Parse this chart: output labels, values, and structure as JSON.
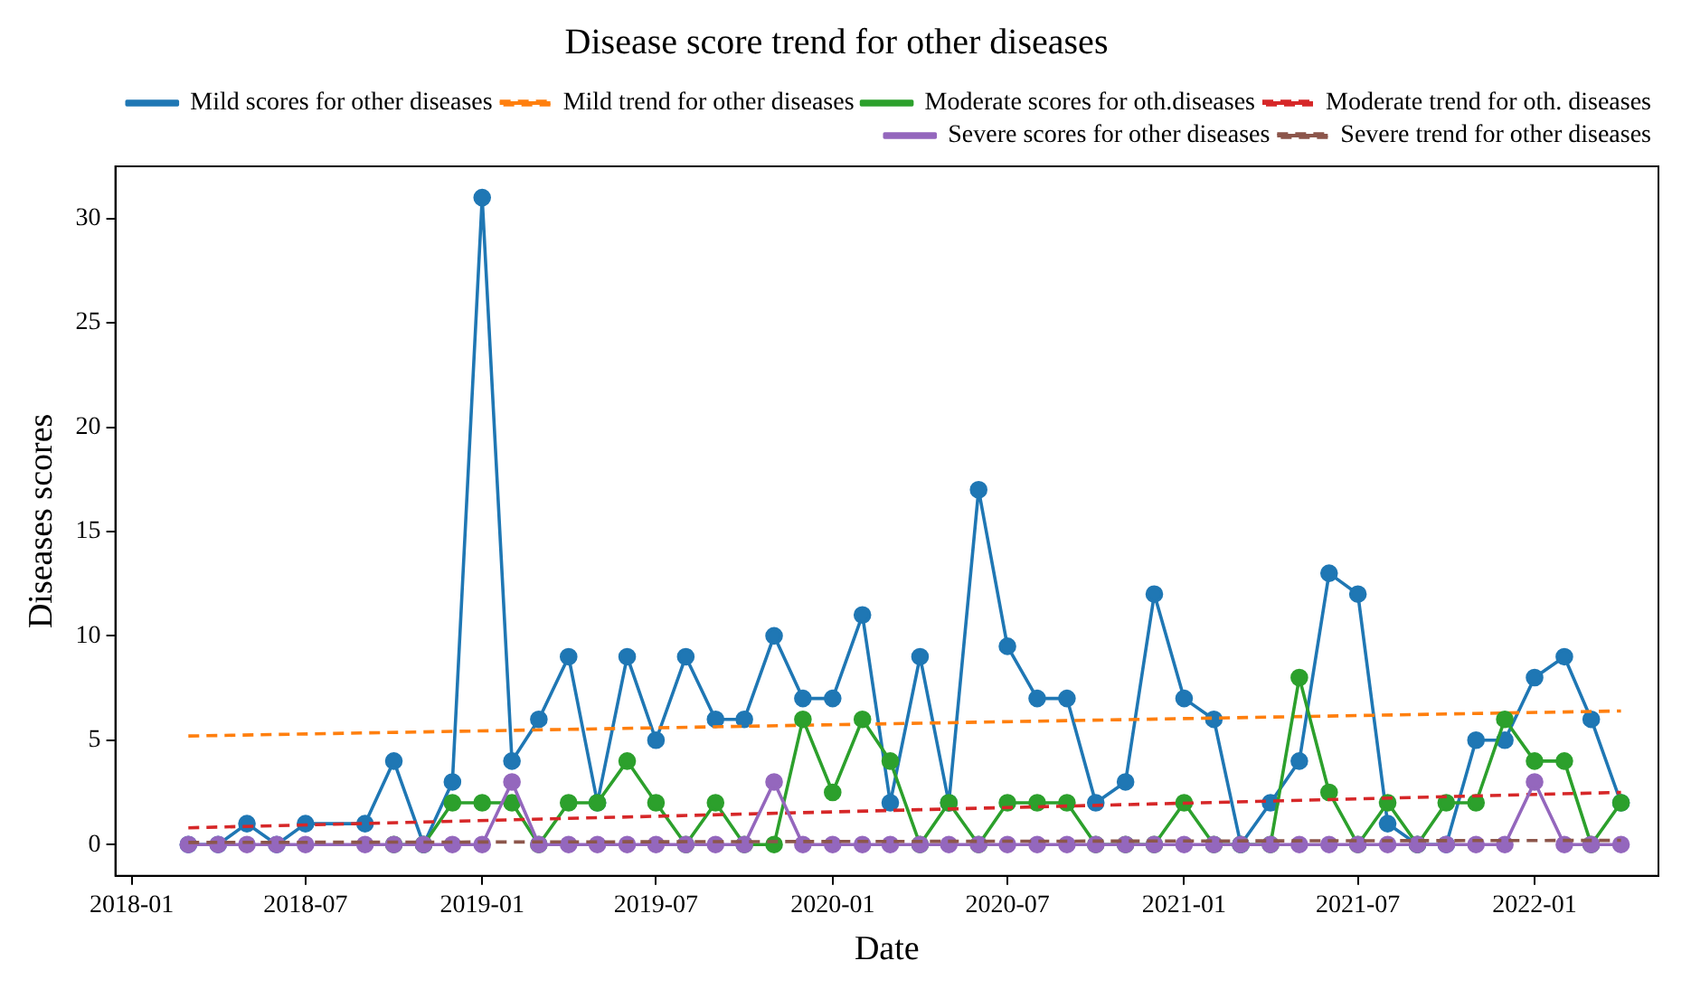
{
  "chart_data": {
    "type": "line",
    "title": "Disease score trend for other diseases",
    "xlabel": "Date",
    "ylabel": "Diseases scores",
    "x": [
      "2018-03",
      "2018-04",
      "2018-05",
      "2018-06",
      "2018-07",
      "2018-09",
      "2018-10",
      "2018-11",
      "2018-12",
      "2019-01",
      "2019-02",
      "2019-03",
      "2019-04",
      "2019-05",
      "2019-06",
      "2019-07",
      "2019-08",
      "2019-09",
      "2019-10",
      "2019-11",
      "2019-12",
      "2020-01",
      "2020-02",
      "2020-03",
      "2020-04",
      "2020-05",
      "2020-06",
      "2020-07",
      "2020-08",
      "2020-09",
      "2020-10",
      "2020-11",
      "2020-12",
      "2021-01",
      "2021-02",
      "2021-03",
      "2021-04",
      "2021-05",
      "2021-06",
      "2021-07",
      "2021-08",
      "2021-09",
      "2021-10",
      "2021-11",
      "2021-12",
      "2022-01",
      "2022-02",
      "2022-03",
      "2022-04"
    ],
    "series": [
      {
        "name": "Mild scores for other diseases",
        "color": "#1f77b4",
        "marker": "circle",
        "line_style": "solid",
        "values": [
          0,
          0,
          1,
          0,
          1,
          1,
          4,
          0,
          3,
          31,
          4,
          6,
          9,
          2,
          9,
          5,
          9,
          6,
          6,
          10,
          7,
          7,
          11,
          2,
          9,
          2,
          17,
          9.5,
          7,
          7,
          2,
          3,
          12,
          7,
          6,
          0,
          2,
          4,
          13,
          12,
          1,
          0,
          0,
          5,
          5,
          8,
          9,
          6,
          2
        ]
      },
      {
        "name": "Mild trend for other diseases",
        "color": "#ff7f0e",
        "marker": "none",
        "line_style": "dashed",
        "x": [
          "2018-03",
          "2022-04"
        ],
        "values": [
          5.2,
          6.4
        ]
      },
      {
        "name": "Moderate scores for oth.diseases",
        "color": "#2ca02c",
        "marker": "circle",
        "line_style": "solid",
        "values": [
          null,
          null,
          null,
          null,
          null,
          null,
          0,
          0,
          2,
          2,
          2,
          0,
          2,
          2,
          4,
          2,
          0,
          2,
          0,
          0,
          6,
          2.5,
          6,
          4,
          0,
          2,
          0,
          2,
          2,
          2,
          0,
          0,
          0,
          2,
          0,
          0,
          0,
          8,
          2.5,
          0,
          2,
          0,
          2,
          2,
          6,
          4,
          4,
          0,
          2
        ]
      },
      {
        "name": "Moderate trend for oth. diseases",
        "color": "#d62728",
        "marker": "none",
        "line_style": "dashed",
        "x": [
          "2018-03",
          "2022-04"
        ],
        "values": [
          0.8,
          2.5
        ]
      },
      {
        "name": "Severe scores for other diseases",
        "color": "#9467bd",
        "marker": "circle",
        "line_style": "solid",
        "values": [
          0,
          0,
          0,
          0,
          0,
          0,
          0,
          0,
          0,
          0,
          3,
          0,
          0,
          0,
          0,
          0,
          0,
          0,
          0,
          3,
          0,
          0,
          0,
          0,
          0,
          0,
          0,
          0,
          0,
          0,
          0,
          0,
          0,
          0,
          0,
          0,
          0,
          0,
          0,
          0,
          0,
          0,
          0,
          0,
          0,
          3,
          0,
          0,
          0
        ]
      },
      {
        "name": "Severe trend for other diseases",
        "color": "#8c564b",
        "marker": "none",
        "line_style": "dashed",
        "x": [
          "2018-03",
          "2022-04"
        ],
        "values": [
          0.1,
          0.2
        ]
      }
    ],
    "xlim": [
      "2017-12-15",
      "2022-05-10"
    ],
    "xticks": [
      "2018-01",
      "2018-07",
      "2019-01",
      "2019-07",
      "2020-01",
      "2020-07",
      "2021-01",
      "2021-07",
      "2022-01"
    ],
    "ylim": [
      -1.5,
      32.5
    ],
    "yticks": [
      0,
      5,
      10,
      15,
      20,
      25,
      30
    ],
    "grid": false,
    "legend": "top right"
  }
}
